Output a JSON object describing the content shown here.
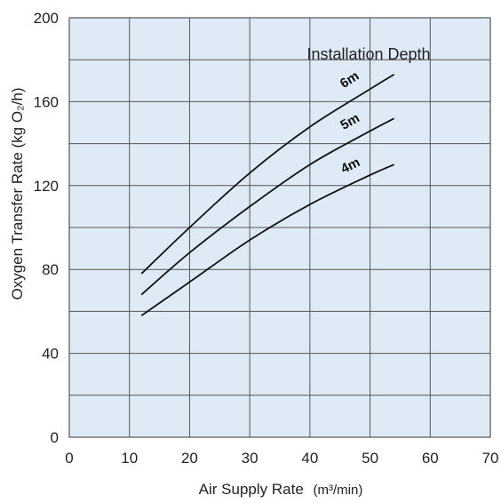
{
  "chart_data": {
    "type": "line",
    "title": "",
    "xlabel": "Air Supply Rate",
    "xlabel_unit": "(m³/min)",
    "ylabel": "Oxygen Transfer Rate (kg O₂/h)",
    "xlim": [
      0,
      70
    ],
    "ylim": [
      0,
      200
    ],
    "x_ticks": [
      0,
      10,
      20,
      30,
      40,
      50,
      60,
      70
    ],
    "y_ticks": [
      0,
      40,
      80,
      120,
      160,
      200
    ],
    "x_minor_step": 10,
    "y_minor_step": 20,
    "grid": true,
    "plot_background": "#deebf6",
    "grid_color": "#555555",
    "line_color": "#111111",
    "legend_title": "Installation Depth",
    "series": [
      {
        "name": "6m",
        "x": [
          12,
          20,
          30,
          40,
          50,
          54
        ],
        "y": [
          78,
          100,
          126,
          148,
          166,
          173
        ]
      },
      {
        "name": "5m",
        "x": [
          12,
          20,
          30,
          40,
          50,
          54
        ],
        "y": [
          68,
          88,
          110,
          130,
          146,
          152
        ]
      },
      {
        "name": "4m",
        "x": [
          12,
          20,
          30,
          40,
          50,
          54
        ],
        "y": [
          58,
          74,
          94,
          111,
          125,
          130
        ]
      }
    ]
  }
}
